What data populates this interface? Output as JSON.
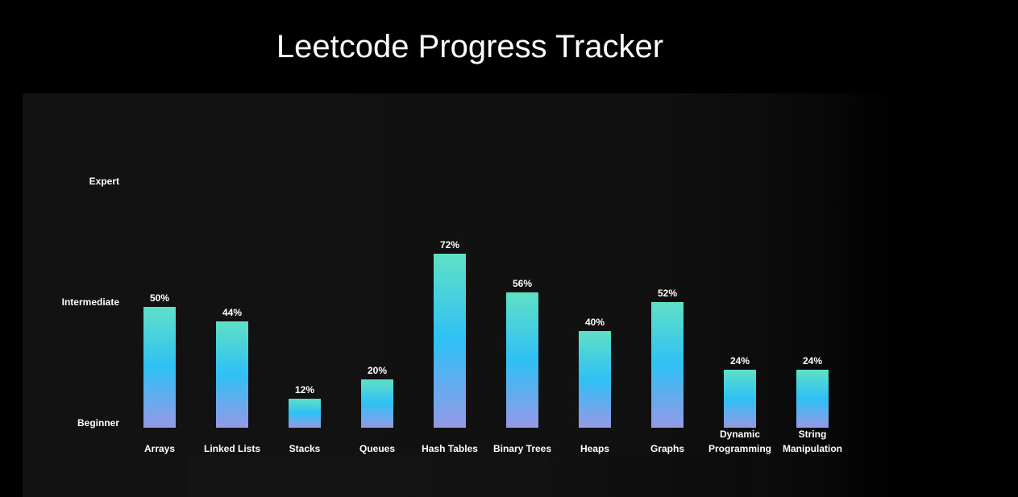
{
  "chart_data": {
    "type": "bar",
    "title": "Leetcode Progress Tracker",
    "categories": [
      [
        "Arrays"
      ],
      [
        "Linked Lists"
      ],
      [
        "Stacks"
      ],
      [
        "Queues"
      ],
      [
        "Hash Tables"
      ],
      [
        "Binary Trees"
      ],
      [
        "Heaps"
      ],
      [
        "Graphs"
      ],
      [
        "Dynamic",
        "Programming"
      ],
      [
        "String",
        "Manipulation"
      ]
    ],
    "values": [
      50,
      44,
      12,
      20,
      72,
      56,
      40,
      52,
      24,
      24
    ],
    "value_suffix": "%",
    "ylim": [
      0,
      100
    ],
    "y_tick_labels": [
      {
        "value": 0,
        "label": "Beginner"
      },
      {
        "value": 50,
        "label": "Intermediate"
      },
      {
        "value": 100,
        "label": "Expert"
      }
    ],
    "grid": false,
    "colors": {
      "bar_top": "#5fe0c6",
      "bar_mid": "#2fc0f5",
      "bar_bottom": "#9599e6",
      "background": "#000000",
      "panel": "#111111",
      "text": "#ffffff"
    }
  }
}
